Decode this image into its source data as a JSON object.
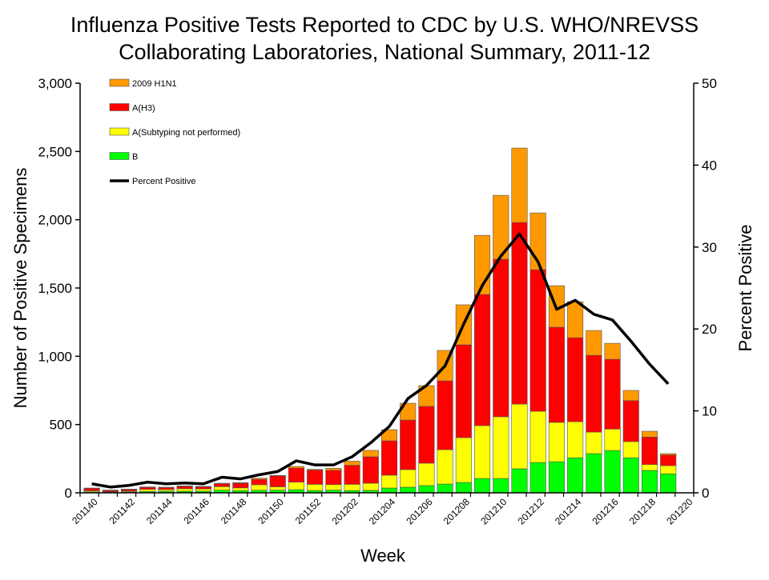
{
  "chart_data": {
    "type": "bar",
    "stacked": true,
    "title": "Influenza Positive Tests Reported to CDC by U.S. WHO/NREVSS Collaborating Laboratories, National Summary, 2011-12",
    "title_lines": [
      "Influenza Positive Tests Reported to CDC by U.S. WHO/NREVSS",
      "Collaborating Laboratories, National Summary, 2011-12"
    ],
    "xlabel": "Week",
    "ylabel": "Number of Positive Specimens",
    "y2label": "Percent Positive",
    "ylim": [
      0,
      3000
    ],
    "y2lim": [
      0,
      50
    ],
    "yticks": [
      "0",
      "500",
      "1,000",
      "1,500",
      "2,000",
      "2,500",
      "3,000"
    ],
    "y2ticks": [
      "0",
      "10",
      "20",
      "30",
      "40",
      "50"
    ],
    "grid": false,
    "legend_position": "top-left",
    "categories": [
      "201140",
      "201141",
      "201142",
      "201143",
      "201144",
      "201145",
      "201146",
      "201147",
      "201148",
      "201149",
      "201150",
      "201151",
      "201152",
      "201201",
      "201202",
      "201203",
      "201204",
      "201205",
      "201206",
      "201207",
      "201208",
      "201209",
      "201210",
      "201211",
      "201212",
      "201213",
      "201214",
      "201215",
      "201216",
      "201217",
      "201218",
      "201219",
      "201220"
    ],
    "xtick_labels": [
      "201140",
      "201142",
      "201144",
      "201146",
      "201148",
      "201150",
      "201152",
      "201202",
      "201204",
      "201206",
      "201208",
      "201210",
      "201212",
      "201214",
      "201216",
      "201218",
      "201220"
    ],
    "series": [
      {
        "name": "B",
        "color": "#00ff00",
        "values": [
          7,
          4,
          6,
          10,
          12,
          12,
          12,
          20,
          16,
          19,
          20,
          23,
          17,
          20,
          17,
          18,
          35,
          41,
          53,
          64,
          76,
          105,
          105,
          176,
          222,
          228,
          256,
          287,
          310,
          256,
          164,
          139,
          null
        ]
      },
      {
        "name": "A(Subtyping not performed)",
        "color": "#ffff00",
        "values": [
          8,
          4,
          6,
          15,
          12,
          18,
          16,
          25,
          20,
          40,
          24,
          55,
          45,
          40,
          45,
          52,
          94,
          129,
          164,
          252,
          328,
          387,
          452,
          474,
          375,
          288,
          265,
          158,
          157,
          119,
          43,
          60,
          null
        ]
      },
      {
        "name": "A(H3)",
        "color": "#ff0000",
        "values": [
          18,
          10,
          12,
          15,
          15,
          17,
          16,
          22,
          35,
          40,
          80,
          103,
          105,
          105,
          140,
          194,
          252,
          363,
          416,
          504,
          680,
          961,
          1154,
          1330,
          1037,
          697,
          615,
          562,
          511,
          300,
          201,
          78,
          null
        ]
      },
      {
        "name": "2009 H1N1",
        "color": "#ff9900",
        "values": [
          2,
          2,
          3,
          3,
          2,
          4,
          3,
          3,
          3,
          8,
          3,
          12,
          5,
          15,
          30,
          47,
          82,
          123,
          152,
          223,
          293,
          433,
          468,
          545,
          416,
          304,
          264,
          182,
          117,
          75,
          43,
          10,
          null
        ]
      }
    ],
    "line_series": {
      "name": "Percent Positive",
      "color": "#000000",
      "axis": "right",
      "values": [
        1.1,
        0.7,
        0.9,
        1.3,
        1.1,
        1.2,
        1.1,
        1.9,
        1.7,
        2.2,
        2.6,
        3.9,
        3.4,
        3.4,
        4.4,
        6.1,
        8.1,
        11.5,
        13.1,
        15.5,
        20.6,
        25.3,
        28.9,
        31.6,
        28.2,
        22.4,
        23.5,
        21.8,
        21.1,
        18.5,
        15.7,
        13.3,
        null
      ]
    },
    "legend": [
      "2009 H1N1",
      "A(H3)",
      "A(Subtyping not performed)",
      "B",
      "Percent Positive"
    ]
  }
}
